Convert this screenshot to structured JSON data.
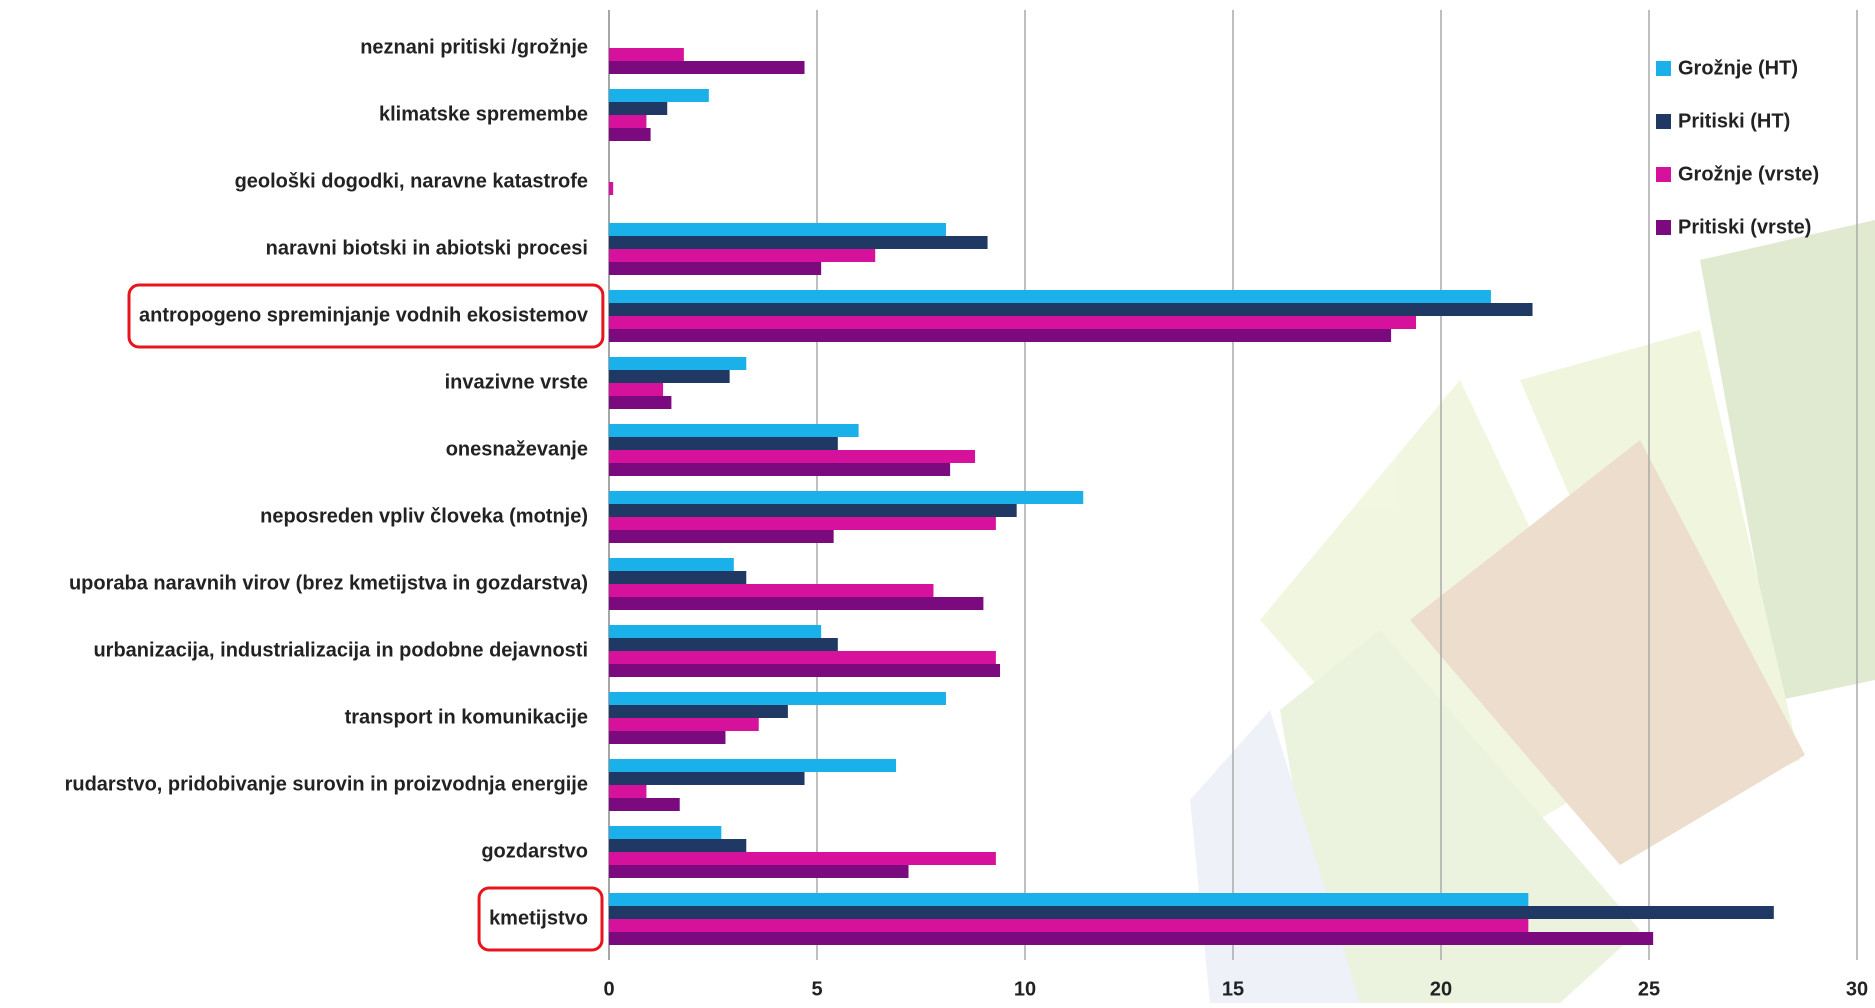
{
  "chart_data": {
    "type": "bar",
    "orientation": "horizontal",
    "categories": [
      "neznani pritiski /grožnje",
      "klimatske spremembe",
      "geološki dogodki, naravne katastrofe",
      "naravni biotski in abiotski procesi",
      "antropogeno spreminjanje vodnih ekosistemov",
      "invazivne vrste",
      "onesnaževanje",
      "neposreden vpliv človeka (motnje)",
      "uporaba naravnih virov (brez kmetijstva in gozdarstva)",
      "urbanizacija, industrializacija in podobne dejavnosti",
      "transport in komunikacije",
      "rudarstvo, pridobivanje surovin in proizvodnja energije",
      "gozdarstvo",
      "kmetijstvo"
    ],
    "series": [
      {
        "name": "Grožnje (HT)",
        "color": "#1ab0ea",
        "values": [
          0,
          2.4,
          0,
          8.1,
          21.2,
          3.3,
          6.0,
          11.4,
          3.0,
          5.1,
          8.1,
          6.9,
          2.7,
          22.1
        ]
      },
      {
        "name": "Pritiski (HT)",
        "color": "#1f3864",
        "values": [
          0,
          1.4,
          0,
          9.1,
          22.2,
          2.9,
          5.5,
          9.8,
          3.3,
          5.5,
          4.3,
          4.7,
          3.3,
          28.0
        ]
      },
      {
        "name": "Grožnje (vrste)",
        "color": "#d6119b",
        "values": [
          1.8,
          0.9,
          0.1,
          6.4,
          19.4,
          1.3,
          8.8,
          9.3,
          7.8,
          9.3,
          3.6,
          0.9,
          9.3,
          22.1
        ]
      },
      {
        "name": "Pritiski (vrste)",
        "color": "#7b0a7e",
        "values": [
          4.7,
          1.0,
          0,
          5.1,
          18.8,
          1.5,
          8.2,
          5.4,
          9.0,
          9.4,
          2.8,
          1.7,
          7.2,
          25.1
        ]
      }
    ],
    "xlim": [
      0,
      30
    ],
    "xticks": [
      0,
      5,
      10,
      15,
      20,
      25,
      30
    ],
    "grid": true,
    "legend": "top-right"
  }
}
